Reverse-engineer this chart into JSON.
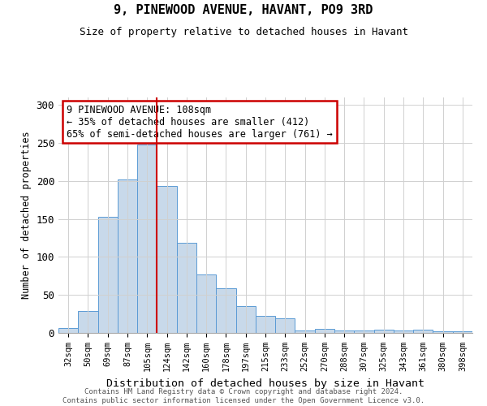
{
  "title": "9, PINEWOOD AVENUE, HAVANT, PO9 3RD",
  "subtitle": "Size of property relative to detached houses in Havant",
  "xlabel": "Distribution of detached houses by size in Havant",
  "ylabel": "Number of detached properties",
  "categories": [
    "32sqm",
    "50sqm",
    "69sqm",
    "87sqm",
    "105sqm",
    "124sqm",
    "142sqm",
    "160sqm",
    "178sqm",
    "197sqm",
    "215sqm",
    "233sqm",
    "252sqm",
    "270sqm",
    "288sqm",
    "307sqm",
    "325sqm",
    "343sqm",
    "361sqm",
    "380sqm",
    "398sqm"
  ],
  "values": [
    6,
    29,
    153,
    202,
    248,
    193,
    119,
    77,
    59,
    35,
    22,
    19,
    3,
    5,
    3,
    3,
    4,
    3,
    4,
    2,
    2
  ],
  "bar_color": "#c8d9ea",
  "bar_edgecolor": "#5b9bd5",
  "vline_x_index": 4,
  "vline_color": "#cc0000",
  "annotation_text": "9 PINEWOOD AVENUE: 108sqm\n← 35% of detached houses are smaller (412)\n65% of semi-detached houses are larger (761) →",
  "annotation_box_edgecolor": "#cc0000",
  "annotation_box_facecolor": "#ffffff",
  "ylim": [
    0,
    310
  ],
  "yticks": [
    0,
    50,
    100,
    150,
    200,
    250,
    300
  ],
  "footer_text": "Contains HM Land Registry data © Crown copyright and database right 2024.\nContains public sector information licensed under the Open Government Licence v3.0.",
  "background_color": "#ffffff",
  "grid_color": "#d0d0d0"
}
